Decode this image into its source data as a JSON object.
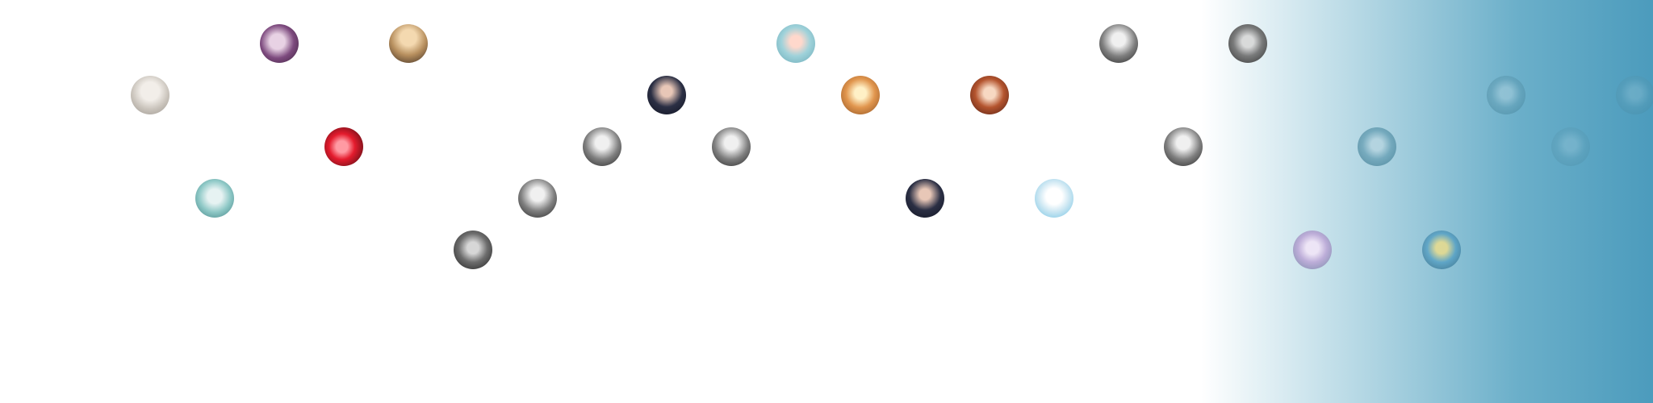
{
  "background": {
    "base_color": "#ffffff",
    "fade_color": "#4a9fbf"
  },
  "avatars": [
    {
      "icon": "user-avatar-icon",
      "tone": "pale"
    },
    {
      "icon": "user-avatar-icon",
      "tone": "purple"
    },
    {
      "icon": "user-avatar-icon",
      "tone": "tan"
    },
    {
      "icon": "user-avatar-icon",
      "tone": "red"
    },
    {
      "icon": "user-avatar-icon",
      "tone": "aqua"
    },
    {
      "icon": "user-avatar-icon",
      "tone": "dark"
    },
    {
      "icon": "user-avatar-icon",
      "tone": "bw"
    },
    {
      "icon": "user-avatar-icon",
      "tone": "bw"
    },
    {
      "icon": "user-avatar-icon",
      "tone": "navy"
    },
    {
      "icon": "user-avatar-icon",
      "tone": "sky"
    },
    {
      "icon": "user-avatar-icon",
      "tone": "bw"
    },
    {
      "icon": "user-avatar-icon",
      "tone": "food"
    },
    {
      "icon": "user-avatar-icon",
      "tone": "ginger"
    },
    {
      "icon": "user-avatar-icon",
      "tone": "navy"
    },
    {
      "icon": "user-avatar-icon",
      "tone": "cartoon"
    },
    {
      "icon": "user-avatar-icon",
      "tone": "bw"
    },
    {
      "icon": "user-avatar-icon",
      "tone": "bw"
    },
    {
      "icon": "user-avatar-icon",
      "tone": "dark"
    },
    {
      "icon": "user-avatar-icon",
      "tone": "lilac"
    },
    {
      "icon": "user-avatar-icon",
      "tone": "blue-muted"
    },
    {
      "icon": "user-avatar-icon",
      "tone": "gold"
    },
    {
      "icon": "user-avatar-icon",
      "tone": "blue-muted"
    },
    {
      "icon": "user-avatar-icon",
      "tone": "blue-muted"
    },
    {
      "icon": "user-avatar-icon",
      "tone": "blue-muted"
    }
  ]
}
